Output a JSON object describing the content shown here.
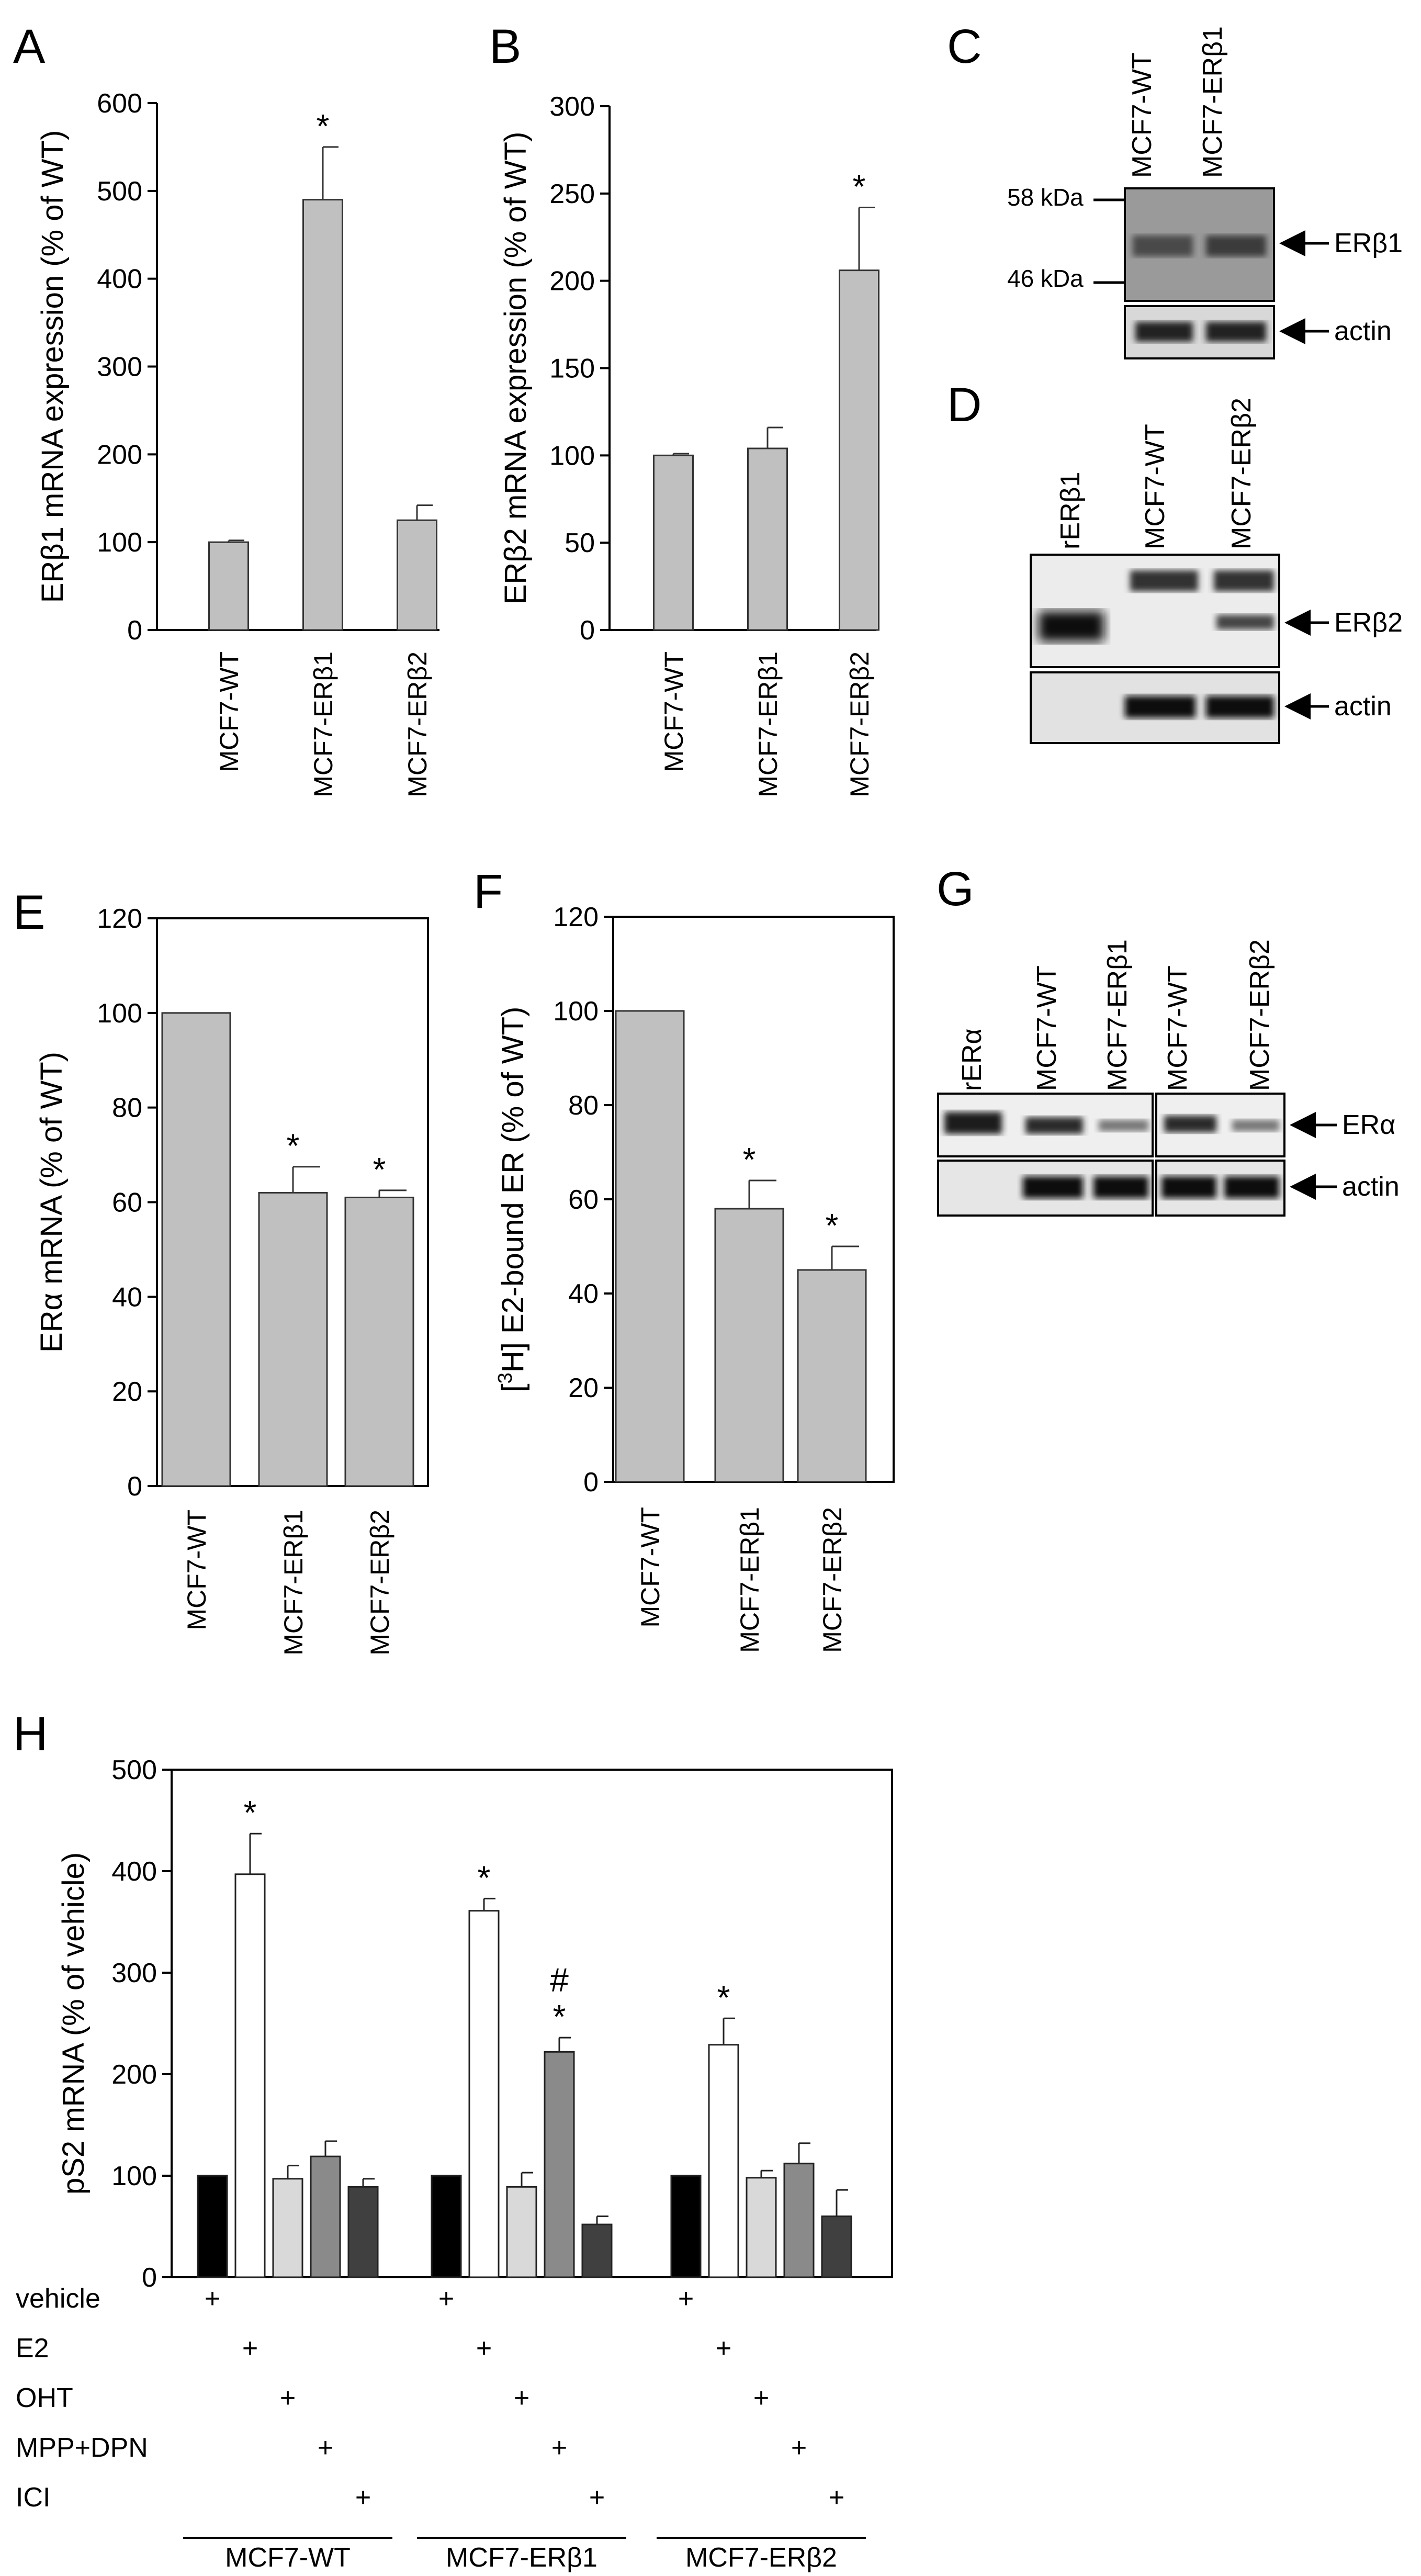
{
  "colors": {
    "bar_grey": "#c0c0c0",
    "white": "#ffffff",
    "light_grey": "#d9d9d9",
    "mid_grey": "#8a8a8a",
    "dark_grey": "#404040",
    "black": "#000000"
  },
  "chart_data": [
    {
      "panel": "A",
      "type": "bar",
      "ylabel": "ERβ1 mRNA expression (% of WT)",
      "categories": [
        "MCF7-WT",
        "MCF7-ERβ1",
        "MCF7-ERβ2"
      ],
      "values": [
        100,
        490,
        125
      ],
      "errors": [
        2,
        60,
        17
      ],
      "significance": [
        "",
        "*",
        ""
      ],
      "ylim": [
        0,
        600
      ],
      "yticks": [
        0,
        100,
        200,
        300,
        400,
        500,
        600
      ]
    },
    {
      "panel": "B",
      "type": "bar",
      "ylabel": "ERβ2 mRNA expression (% of WT)",
      "categories": [
        "MCF7-WT",
        "MCF7-ERβ1",
        "MCF7-ERβ2"
      ],
      "values": [
        100,
        104,
        206
      ],
      "errors": [
        1,
        12,
        36
      ],
      "significance": [
        "",
        "",
        "*"
      ],
      "ylim": [
        0,
        300
      ],
      "yticks": [
        0,
        50,
        100,
        150,
        200,
        250,
        300
      ]
    },
    {
      "panel": "E",
      "type": "bar",
      "ylabel": "ERα mRNA (% of WT)",
      "categories": [
        "MCF7-WT",
        "MCF7-ERβ1",
        "MCF7-ERβ2"
      ],
      "values": [
        100,
        62,
        61
      ],
      "errors": [
        0,
        5.5,
        1.5
      ],
      "significance": [
        "",
        "*",
        "*"
      ],
      "ylim": [
        0,
        120
      ],
      "yticks": [
        0,
        20,
        40,
        60,
        80,
        100,
        120
      ]
    },
    {
      "panel": "F",
      "type": "bar",
      "ylabel_prefix": "[",
      "ylabel_sup": "3",
      "ylabel_rest": "H] E2-bound ER (% of WT)",
      "categories": [
        "MCF7-WT",
        "MCF7-ERβ1",
        "MCF7-ERβ2"
      ],
      "values": [
        100,
        58,
        45
      ],
      "errors": [
        0,
        6,
        5
      ],
      "significance": [
        "",
        "*",
        "*"
      ],
      "ylim": [
        0,
        120
      ],
      "yticks": [
        0,
        20,
        40,
        60,
        80,
        100,
        120
      ]
    },
    {
      "panel": "H",
      "type": "bar",
      "ylabel": "pS2 mRNA (% of vehicle)",
      "groups": [
        "MCF7-WT",
        "MCF7-ERβ1",
        "MCF7-ERβ2"
      ],
      "treatments": [
        "vehicle",
        "E2",
        "OHT",
        "MPP+DPN",
        "ICI"
      ],
      "treatment_colors": [
        "#000000",
        "#ffffff",
        "#d9d9d9",
        "#8a8a8a",
        "#404040"
      ],
      "series": [
        {
          "group": "MCF7-WT",
          "values": [
            100,
            397,
            97,
            119,
            89
          ],
          "errors": [
            0,
            40,
            13,
            15,
            8
          ],
          "marks": [
            "",
            "*",
            "",
            "",
            ""
          ]
        },
        {
          "group": "MCF7-ERβ1",
          "values": [
            100,
            361,
            89,
            222,
            52
          ],
          "errors": [
            0,
            12,
            14,
            14,
            8
          ],
          "marks": [
            "",
            "*",
            "",
            "*",
            ""
          ]
        },
        {
          "group": "MCF7-ERβ2",
          "values": [
            100,
            229,
            98,
            112,
            60
          ],
          "errors": [
            0,
            26,
            7,
            20,
            26
          ],
          "marks": [
            "",
            "*",
            "",
            "",
            ""
          ]
        }
      ],
      "extra_marks": [
        {
          "group": "MCF7-ERβ1",
          "treatment": "MPP+DPN",
          "mark": "#"
        }
      ],
      "plus_sign": "+",
      "ylim": [
        0,
        500
      ],
      "yticks": [
        0,
        100,
        200,
        300,
        400,
        500
      ]
    }
  ],
  "blots": {
    "C": {
      "label": "C",
      "lanes": [
        "MCF7-WT",
        "MCF7-ERβ1"
      ],
      "markers": [
        "58 kDa",
        "46 kDa"
      ],
      "bands": [
        "ERβ1",
        "actin"
      ]
    },
    "D": {
      "label": "D",
      "lanes": [
        "rERβ1",
        "MCF7-WT",
        "MCF7-ERβ2"
      ],
      "bands": [
        "ERβ2",
        "actin"
      ]
    },
    "G": {
      "label": "G",
      "lanes": [
        "rERα",
        "MCF7-WT",
        "MCF7-ERβ1",
        "MCF7-WT",
        "MCF7-ERβ2"
      ],
      "bands": [
        "ERα",
        "actin"
      ]
    }
  }
}
